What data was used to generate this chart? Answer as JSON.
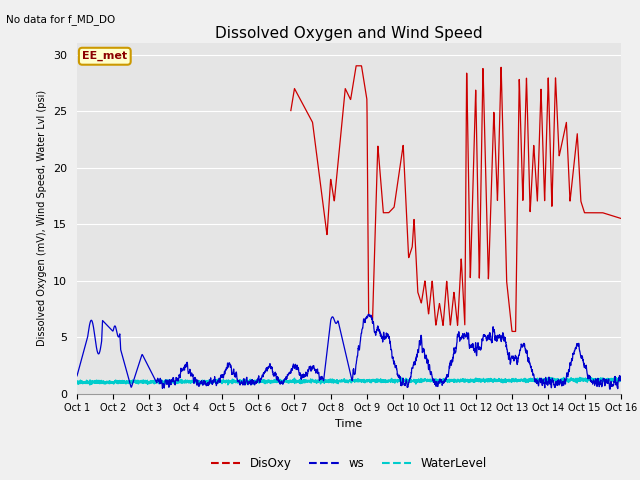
{
  "title": "Dissolved Oxygen and Wind Speed",
  "subtitle": "No data for f_MD_DO",
  "ylabel": "Dissolved Oxygen (mV), Wind Speed, Water Lvl (psi)",
  "xlabel": "Time",
  "xlim_days": [
    1,
    16
  ],
  "ylim": [
    0,
    31
  ],
  "yticks": [
    0,
    5,
    10,
    15,
    20,
    25,
    30
  ],
  "xtick_labels": [
    "Oct 1",
    "Oct 2",
    "Oct 3",
    "Oct 4",
    "Oct 5",
    "Oct 6",
    "Oct 7",
    "Oct 8",
    "Oct 9",
    "Oct 10",
    "Oct 11",
    "Oct 12",
    "Oct 13",
    "Oct 14",
    "Oct 15",
    "Oct 16"
  ],
  "background_color": "#e5e5e5",
  "plot_bg_color": "#e5e5e5",
  "grid_color": "#ffffff",
  "legend_label_do": "DisOxy",
  "legend_label_ws": "ws",
  "legend_label_wl": "WaterLevel",
  "color_do": "#cc0000",
  "color_ws": "#0000cc",
  "color_wl": "#00cccc",
  "annotation_box": "EE_met",
  "annotation_bg": "#ffffcc",
  "annotation_edge": "#cc9900",
  "fig_bg": "#f0f0f0"
}
